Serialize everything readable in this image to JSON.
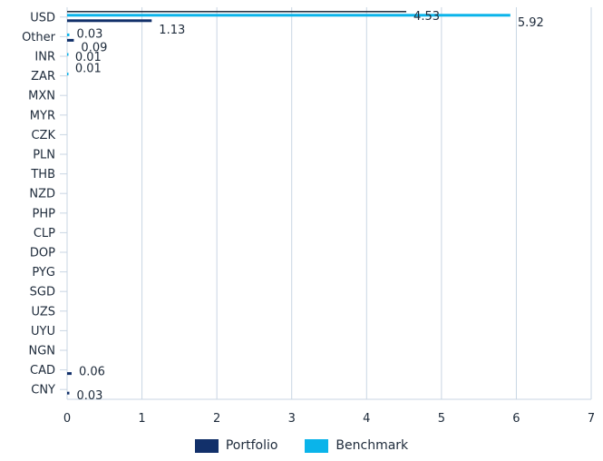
{
  "chart_data": {
    "type": "bar",
    "orientation": "horizontal",
    "categories": [
      "USD",
      "Other",
      "INR",
      "ZAR",
      "MXN",
      "MYR",
      "CZK",
      "PLN",
      "THB",
      "NZD",
      "PHP",
      "CLP",
      "DOP",
      "PYG",
      "SGD",
      "UZS",
      "UYU",
      "NGN",
      "CAD",
      "CNY"
    ],
    "series": [
      {
        "name": "Portfolio",
        "color": "#12306a",
        "values": [
          1.13,
          0.09,
          null,
          null,
          null,
          null,
          null,
          null,
          null,
          null,
          null,
          null,
          null,
          null,
          null,
          null,
          null,
          null,
          0.06,
          0.03
        ],
        "labels": [
          "1.13",
          "0.09",
          "",
          "",
          "",
          "",
          "",
          "",
          "",
          "",
          "",
          "",
          "",
          "",
          "",
          "",
          "",
          "",
          "0.06",
          "0.03"
        ]
      },
      {
        "name": "Benchmark",
        "color": "#0ab4ea",
        "values": [
          5.92,
          0.03,
          0.01,
          0.01,
          null,
          null,
          null,
          null,
          null,
          null,
          null,
          null,
          null,
          null,
          null,
          null,
          null,
          null,
          null,
          null
        ],
        "labels": [
          "5.92",
          "0.03",
          "0.01",
          "0.01",
          "",
          "",
          "",
          "",
          "",
          "",
          "",
          "",
          "",
          "",
          "",
          "",
          "",
          "",
          "",
          ""
        ]
      },
      {
        "name": "",
        "color": "#1d2a3a",
        "values": [
          4.53,
          null,
          null,
          null,
          null,
          null,
          null,
          null,
          null,
          null,
          null,
          null,
          null,
          null,
          null,
          null,
          null,
          null,
          null,
          null
        ],
        "labels": [
          "4.53",
          "",
          "",
          "",
          "",
          "",
          "",
          "",
          "",
          "",
          "",
          "",
          "",
          "",
          "",
          "",
          "",
          "",
          "",
          ""
        ]
      }
    ],
    "x_ticks": [
      "0",
      "1",
      "2",
      "3",
      "4",
      "5",
      "6",
      "7"
    ],
    "xlim": [
      0,
      7
    ],
    "grid": true,
    "legend_position": "bottom",
    "title": "",
    "xlabel": "",
    "ylabel": ""
  },
  "legend": {
    "portfolio_label": "Portfolio",
    "benchmark_label": "Benchmark",
    "portfolio_color": "#12306a",
    "benchmark_color": "#0ab4ea"
  }
}
